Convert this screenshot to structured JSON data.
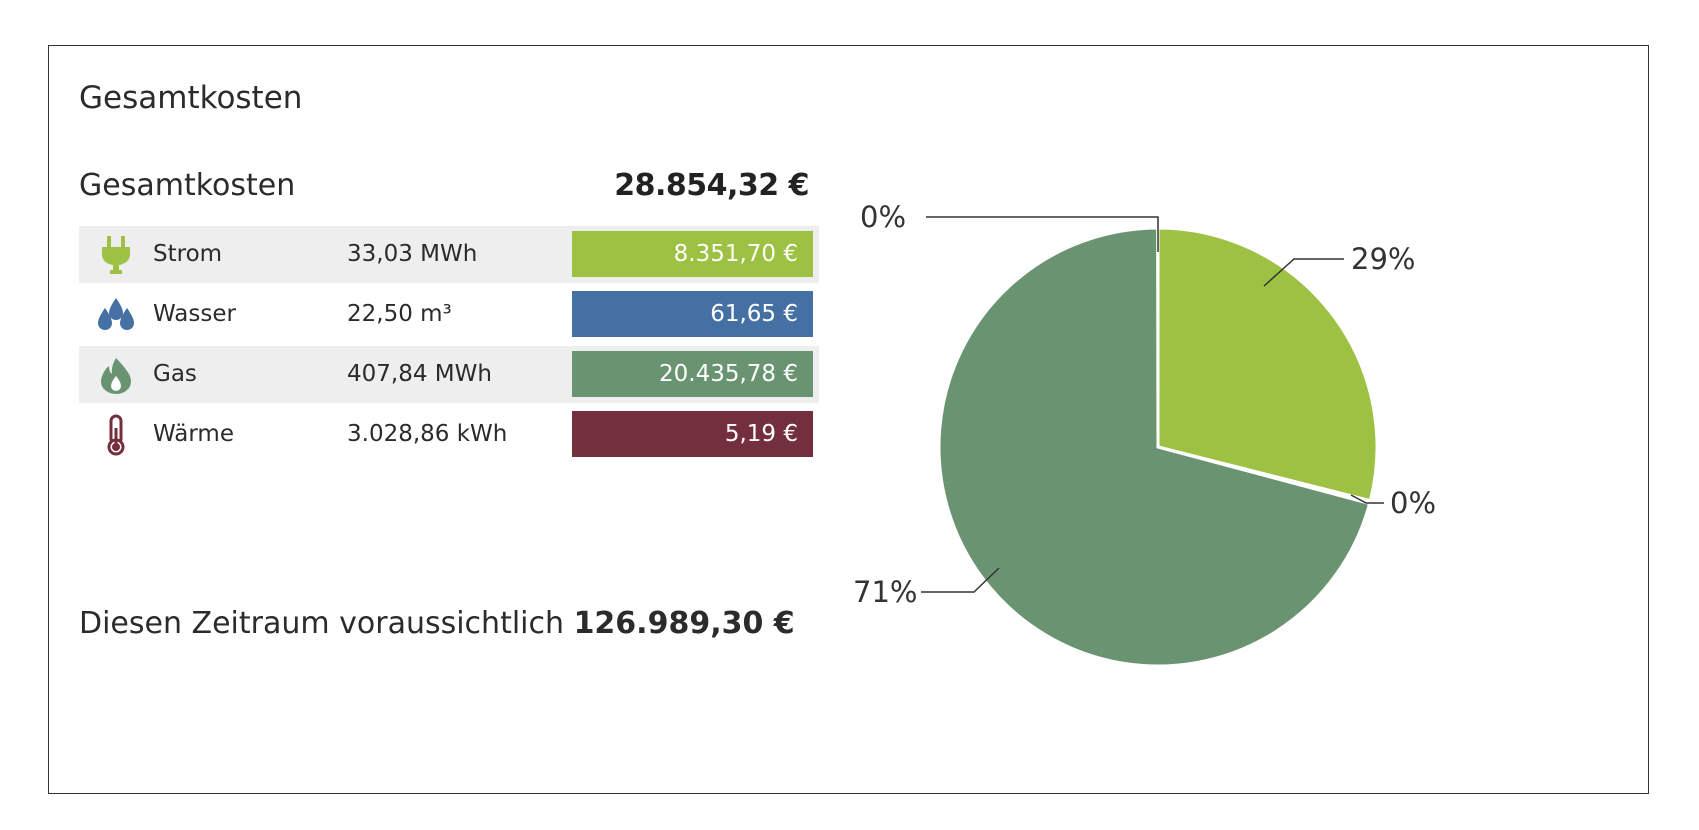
{
  "card": {
    "title": "Gesamtkosten",
    "total_label": "Gesamtkosten",
    "total_value": "28.854,32 €",
    "forecast_prefix": "Diesen Zeitraum voraussichtlich",
    "forecast_value": "126.989,30 €"
  },
  "rows": [
    {
      "name": "Strom",
      "amount": "33,03 MWh",
      "cost": "8.351,70 €",
      "color": "#9dc142",
      "icon": "plug-icon"
    },
    {
      "name": "Wasser",
      "amount": "22,50 m³",
      "cost": "61,65 €",
      "color": "#4470a4",
      "icon": "water-drops-icon"
    },
    {
      "name": "Gas",
      "amount": "407,84 MWh",
      "cost": "20.435,78 €",
      "color": "#6a9471",
      "icon": "flame-icon"
    },
    {
      "name": "Wärme",
      "amount": "3.028,86 kWh",
      "cost": "5,19 €",
      "color": "#742f3c",
      "icon": "thermometer-icon"
    }
  ],
  "chart_data": {
    "type": "pie",
    "categories": [
      "Strom",
      "Wasser",
      "Gas",
      "Wärme"
    ],
    "values": [
      8351.7,
      61.65,
      20435.78,
      5.19
    ],
    "labels": [
      "29%",
      "0%",
      "71%",
      "0%"
    ],
    "colors": [
      "#9dc142",
      "#4470a4",
      "#6a9471",
      "#742f3c"
    ]
  }
}
